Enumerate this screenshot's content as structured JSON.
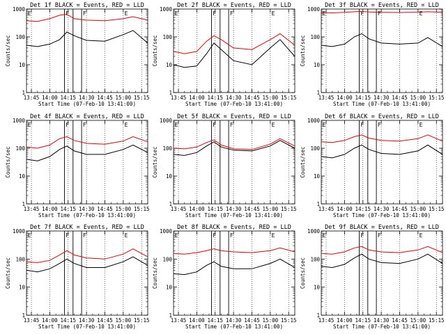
{
  "colors": {
    "events": "#000000",
    "lld": "#ee0000",
    "axis": "#000000",
    "grid": "#000000"
  },
  "chart_data": [
    {
      "type": "line",
      "title": "Det 1f BLACK = Events, RED = LLD",
      "xlabel": "Start Time (07-Feb-10 13:41:00)",
      "ylabel": "Counts/sec",
      "y_scale": "log",
      "ylim": [
        1,
        1000
      ],
      "xlim": [
        "13:41",
        "15:20"
      ],
      "x_ticks": [
        "13:45",
        "14:00",
        "14:15",
        "14:30",
        "14:45",
        "15:00",
        "15:15"
      ],
      "y_ticks": [
        "1",
        "10",
        "100",
        "1000"
      ],
      "vertical_lines": [
        "14:12",
        "14:19",
        "14:26"
      ],
      "region_marks": [
        {
          "label": "E",
          "x": "13:42"
        },
        {
          "label": "F",
          "x": "14:13"
        },
        {
          "label": "F",
          "x": "14:27"
        },
        {
          "label": "E",
          "x": "15:01"
        }
      ],
      "series": [
        {
          "name": "BLACK = Events",
          "color": "#000000",
          "x": [
            "13:41",
            "13:50",
            "14:00",
            "14:08",
            "14:14",
            "14:20",
            "14:30",
            "14:45",
            "15:00",
            "15:08",
            "15:20"
          ],
          "y": [
            50,
            45,
            55,
            80,
            150,
            110,
            75,
            70,
            120,
            170,
            60
          ]
        },
        {
          "name": "RED = LLD",
          "color": "#ee0000",
          "x": [
            "13:41",
            "13:50",
            "14:00",
            "14:08",
            "14:14",
            "14:20",
            "14:30",
            "14:45",
            "15:00",
            "15:08",
            "15:20"
          ],
          "y": [
            380,
            360,
            450,
            600,
            650,
            450,
            400,
            380,
            450,
            530,
            400
          ]
        }
      ]
    },
    {
      "type": "line",
      "title": "Det 2f BLACK = Events, RED = LLD",
      "xlabel": "Start Time (07-Feb-10 13:41:00)",
      "ylabel": "Counts/sec",
      "y_scale": "log",
      "ylim": [
        1,
        1000
      ],
      "xlim": [
        "13:41",
        "15:20"
      ],
      "x_ticks": [
        "13:45",
        "14:00",
        "14:15",
        "14:30",
        "14:45",
        "15:00",
        "15:15"
      ],
      "y_ticks": [
        "1",
        "10",
        "100",
        "1000"
      ],
      "vertical_lines": [
        "14:12",
        "14:19",
        "14:26"
      ],
      "region_marks": [
        {
          "label": "E",
          "x": "13:42"
        },
        {
          "label": "F",
          "x": "14:13"
        },
        {
          "label": "F",
          "x": "14:27"
        },
        {
          "label": "E",
          "x": "15:01"
        }
      ],
      "series": [
        {
          "name": "BLACK = Events",
          "color": "#000000",
          "x": [
            "13:41",
            "13:50",
            "14:00",
            "14:08",
            "14:14",
            "14:20",
            "14:30",
            "14:45",
            "15:00",
            "15:08",
            "15:20"
          ],
          "y": [
            10,
            8,
            9,
            25,
            60,
            35,
            14,
            10,
            40,
            80,
            20
          ]
        },
        {
          "name": "RED = LLD",
          "color": "#ee0000",
          "x": [
            "13:41",
            "13:50",
            "14:00",
            "14:08",
            "14:14",
            "14:20",
            "14:30",
            "14:45",
            "15:00",
            "15:08",
            "15:20"
          ],
          "y": [
            30,
            25,
            30,
            70,
            110,
            80,
            40,
            35,
            80,
            130,
            50
          ]
        }
      ]
    },
    {
      "type": "line",
      "title": "Det 3f BLACK = Events, RED = LLD",
      "xlabel": "Start Time (07-Feb-10 13:41:00)",
      "ylabel": "Counts/sec",
      "y_scale": "log",
      "ylim": [
        1,
        1000
      ],
      "xlim": [
        "13:41",
        "15:20"
      ],
      "x_ticks": [
        "13:45",
        "14:00",
        "14:15",
        "14:30",
        "14:45",
        "15:00",
        "15:15"
      ],
      "y_ticks": [
        "1",
        "10",
        "100",
        "1000"
      ],
      "vertical_lines": [
        "14:12",
        "14:19",
        "14:26"
      ],
      "region_marks": [
        {
          "label": "E",
          "x": "13:42"
        },
        {
          "label": "F",
          "x": "14:13"
        },
        {
          "label": "F",
          "x": "14:27"
        },
        {
          "label": "E",
          "x": "15:01"
        }
      ],
      "series": [
        {
          "name": "BLACK = Events",
          "color": "#000000",
          "x": [
            "13:41",
            "13:50",
            "14:00",
            "14:08",
            "14:14",
            "14:20",
            "14:30",
            "14:45",
            "15:00",
            "15:08",
            "15:20"
          ],
          "y": [
            50,
            45,
            55,
            100,
            130,
            85,
            60,
            55,
            60,
            95,
            45
          ]
        },
        {
          "name": "RED = LLD",
          "color": "#ee0000",
          "x": [
            "13:41",
            "13:50",
            "14:00",
            "14:08",
            "14:14",
            "14:20",
            "14:30",
            "14:45",
            "15:00",
            "15:08",
            "15:20"
          ],
          "y": [
            750,
            730,
            760,
            800,
            820,
            780,
            760,
            750,
            770,
            800,
            760
          ]
        }
      ]
    },
    {
      "type": "line",
      "title": "Det 4f BLACK = Events, RED = LLD",
      "xlabel": "Start Time (07-Feb-10 13:41:00)",
      "ylabel": "Counts/sec",
      "y_scale": "log",
      "ylim": [
        1,
        1000
      ],
      "xlim": [
        "13:41",
        "15:20"
      ],
      "x_ticks": [
        "13:45",
        "14:00",
        "14:15",
        "14:30",
        "14:45",
        "15:00",
        "15:15"
      ],
      "y_ticks": [
        "1",
        "10",
        "100",
        "1000"
      ],
      "vertical_lines": [
        "14:12",
        "14:19",
        "14:26"
      ],
      "region_marks": [
        {
          "label": "E",
          "x": "13:42"
        },
        {
          "label": "F",
          "x": "14:13"
        },
        {
          "label": "F",
          "x": "14:27"
        },
        {
          "label": "E",
          "x": "15:01"
        }
      ],
      "series": [
        {
          "name": "BLACK = Events",
          "color": "#000000",
          "x": [
            "13:41",
            "13:50",
            "14:00",
            "14:08",
            "14:14",
            "14:20",
            "14:30",
            "14:45",
            "15:00",
            "15:08",
            "15:20"
          ],
          "y": [
            40,
            35,
            50,
            90,
            120,
            80,
            60,
            60,
            90,
            130,
            70
          ]
        },
        {
          "name": "RED = LLD",
          "color": "#ee0000",
          "x": [
            "13:41",
            "13:50",
            "14:00",
            "14:08",
            "14:14",
            "14:20",
            "14:30",
            "14:45",
            "15:00",
            "15:08",
            "15:20"
          ],
          "y": [
            110,
            100,
            130,
            220,
            260,
            190,
            150,
            140,
            180,
            260,
            170
          ]
        }
      ]
    },
    {
      "type": "line",
      "title": "Det 5f BLACK = Events, RED = LLD",
      "xlabel": "Start Time (07-Feb-10 13:41:00)",
      "ylabel": "Counts/sec",
      "y_scale": "log",
      "ylim": [
        1,
        1000
      ],
      "xlim": [
        "13:41",
        "15:20"
      ],
      "x_ticks": [
        "13:45",
        "14:00",
        "14:15",
        "14:30",
        "14:45",
        "15:00",
        "15:15"
      ],
      "y_ticks": [
        "1",
        "10",
        "100",
        "1000"
      ],
      "vertical_lines": [
        "14:12",
        "14:19",
        "14:26"
      ],
      "region_marks": [
        {
          "label": "E",
          "x": "13:42"
        },
        {
          "label": "F",
          "x": "14:13"
        },
        {
          "label": "F",
          "x": "14:27"
        },
        {
          "label": "E",
          "x": "15:01"
        }
      ],
      "series": [
        {
          "name": "BLACK = Events",
          "color": "#000000",
          "x": [
            "13:41",
            "13:50",
            "14:00",
            "14:08",
            "14:14",
            "14:20",
            "14:30",
            "14:45",
            "15:00",
            "15:08",
            "15:20"
          ],
          "y": [
            60,
            55,
            70,
            120,
            170,
            110,
            85,
            80,
            120,
            190,
            100
          ]
        },
        {
          "name": "RED = LLD",
          "color": "#ee0000",
          "x": [
            "13:41",
            "13:50",
            "14:00",
            "14:08",
            "14:14",
            "14:20",
            "14:30",
            "14:45",
            "15:00",
            "15:08",
            "15:20"
          ],
          "y": [
            100,
            95,
            110,
            160,
            200,
            130,
            95,
            90,
            140,
            220,
            120
          ]
        }
      ]
    },
    {
      "type": "line",
      "title": "Det 6f BLACK = Events, RED = LLD",
      "xlabel": "Start Time (07-Feb-10 13:41:00)",
      "ylabel": "Counts/sec",
      "y_scale": "log",
      "ylim": [
        1,
        1000
      ],
      "xlim": [
        "13:41",
        "15:20"
      ],
      "x_ticks": [
        "13:45",
        "14:00",
        "14:15",
        "14:30",
        "14:45",
        "15:00",
        "15:15"
      ],
      "y_ticks": [
        "1",
        "10",
        "100",
        "1000"
      ],
      "vertical_lines": [
        "14:12",
        "14:19",
        "14:26"
      ],
      "region_marks": [
        {
          "label": "E",
          "x": "13:42"
        },
        {
          "label": "F",
          "x": "14:13"
        },
        {
          "label": "F",
          "x": "14:27"
        },
        {
          "label": "E",
          "x": "15:01"
        }
      ],
      "series": [
        {
          "name": "BLACK = Events",
          "color": "#000000",
          "x": [
            "13:41",
            "13:50",
            "14:00",
            "14:08",
            "14:14",
            "14:20",
            "14:30",
            "14:45",
            "15:00",
            "15:08",
            "15:20"
          ],
          "y": [
            50,
            45,
            60,
            100,
            130,
            90,
            65,
            60,
            80,
            130,
            60
          ]
        },
        {
          "name": "RED = LLD",
          "color": "#ee0000",
          "x": [
            "13:41",
            "13:50",
            "14:00",
            "14:08",
            "14:14",
            "14:20",
            "14:30",
            "14:45",
            "15:00",
            "15:08",
            "15:20"
          ],
          "y": [
            170,
            160,
            190,
            260,
            300,
            230,
            190,
            180,
            220,
            300,
            180
          ]
        }
      ]
    },
    {
      "type": "line",
      "title": "Det 7f BLACK = Events, RED = LLD",
      "xlabel": "Start Time (07-Feb-10 13:41:00)",
      "ylabel": "Counts/sec",
      "y_scale": "log",
      "ylim": [
        1,
        1000
      ],
      "xlim": [
        "13:41",
        "15:20"
      ],
      "x_ticks": [
        "13:45",
        "14:00",
        "14:15",
        "14:30",
        "14:45",
        "15:00",
        "15:15"
      ],
      "y_ticks": [
        "1",
        "10",
        "100",
        "1000"
      ],
      "vertical_lines": [
        "14:12",
        "14:19",
        "14:26"
      ],
      "region_marks": [
        {
          "label": "E",
          "x": "13:42"
        },
        {
          "label": "F",
          "x": "14:13"
        },
        {
          "label": "F",
          "x": "14:27"
        },
        {
          "label": "E",
          "x": "15:01"
        }
      ],
      "series": [
        {
          "name": "BLACK = Events",
          "color": "#000000",
          "x": [
            "13:41",
            "13:50",
            "14:00",
            "14:08",
            "14:14",
            "14:20",
            "14:30",
            "14:45",
            "15:00",
            "15:08",
            "15:20"
          ],
          "y": [
            40,
            35,
            45,
            70,
            100,
            70,
            50,
            50,
            80,
            120,
            60
          ]
        },
        {
          "name": "RED = LLD",
          "color": "#ee0000",
          "x": [
            "13:41",
            "13:50",
            "14:00",
            "14:08",
            "14:14",
            "14:20",
            "14:30",
            "14:45",
            "15:00",
            "15:08",
            "15:20"
          ],
          "y": [
            80,
            75,
            90,
            140,
            200,
            140,
            110,
            100,
            150,
            230,
            120
          ]
        }
      ]
    },
    {
      "type": "line",
      "title": "Det 8f BLACK = Events, RED = LLD",
      "xlabel": "Start Time (07-Feb-10 13:41:00)",
      "ylabel": "Counts/sec",
      "y_scale": "log",
      "ylim": [
        1,
        1000
      ],
      "xlim": [
        "13:41",
        "15:20"
      ],
      "x_ticks": [
        "13:45",
        "14:00",
        "14:15",
        "14:30",
        "14:45",
        "15:00",
        "15:15"
      ],
      "y_ticks": [
        "1",
        "10",
        "100",
        "1000"
      ],
      "vertical_lines": [
        "14:12",
        "14:19",
        "14:26"
      ],
      "region_marks": [
        {
          "label": "E",
          "x": "13:42"
        },
        {
          "label": "F",
          "x": "14:13"
        },
        {
          "label": "F",
          "x": "14:27"
        },
        {
          "label": "E",
          "x": "15:01"
        }
      ],
      "series": [
        {
          "name": "BLACK = Events",
          "color": "#000000",
          "x": [
            "13:41",
            "13:50",
            "14:00",
            "14:08",
            "14:14",
            "14:20",
            "14:30",
            "14:45",
            "15:00",
            "15:08",
            "15:20"
          ],
          "y": [
            30,
            28,
            35,
            60,
            80,
            55,
            45,
            45,
            70,
            100,
            50
          ]
        },
        {
          "name": "RED = LLD",
          "color": "#ee0000",
          "x": [
            "13:41",
            "13:50",
            "14:00",
            "14:08",
            "14:14",
            "14:20",
            "14:30",
            "14:45",
            "15:00",
            "15:08",
            "15:20"
          ],
          "y": [
            160,
            150,
            170,
            200,
            230,
            200,
            180,
            170,
            200,
            250,
            180
          ]
        }
      ]
    },
    {
      "type": "line",
      "title": "Det 9f BLACK = Events, RED = LLD",
      "xlabel": "Start Time (07-Feb-10 13:41:00)",
      "ylabel": "Counts/sec",
      "y_scale": "log",
      "ylim": [
        1,
        1000
      ],
      "xlim": [
        "13:41",
        "15:20"
      ],
      "x_ticks": [
        "13:45",
        "14:00",
        "14:15",
        "14:30",
        "14:45",
        "15:00",
        "15:15"
      ],
      "y_ticks": [
        "1",
        "10",
        "100",
        "1000"
      ],
      "vertical_lines": [
        "14:12",
        "14:19",
        "14:26"
      ],
      "region_marks": [
        {
          "label": "E",
          "x": "13:42"
        },
        {
          "label": "F",
          "x": "14:13"
        },
        {
          "label": "F",
          "x": "14:27"
        },
        {
          "label": "E",
          "x": "15:01"
        }
      ],
      "series": [
        {
          "name": "BLACK = Events",
          "color": "#000000",
          "x": [
            "13:41",
            "13:50",
            "14:00",
            "14:08",
            "14:14",
            "14:20",
            "14:30",
            "14:45",
            "15:00",
            "15:08",
            "15:20"
          ],
          "y": [
            55,
            50,
            65,
            110,
            150,
            100,
            75,
            70,
            100,
            150,
            70
          ]
        },
        {
          "name": "RED = LLD",
          "color": "#ee0000",
          "x": [
            "13:41",
            "13:50",
            "14:00",
            "14:08",
            "14:14",
            "14:20",
            "14:30",
            "14:45",
            "15:00",
            "15:08",
            "15:20"
          ],
          "y": [
            160,
            150,
            180,
            250,
            280,
            210,
            180,
            170,
            210,
            280,
            170
          ]
        }
      ]
    }
  ]
}
